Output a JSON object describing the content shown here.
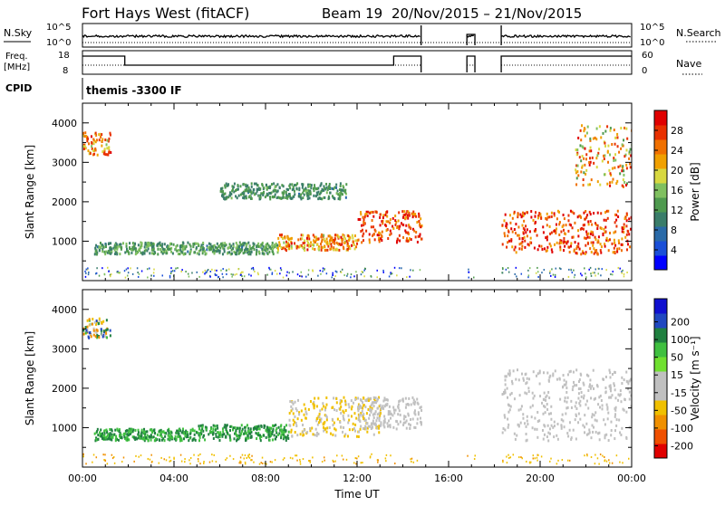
{
  "title": {
    "station": "Fort Hays West (fitACF)",
    "beam": "Beam 19",
    "dates": "20/Nov/2015 – 21/Nov/2015"
  },
  "panels": {
    "nsky": {
      "left_label": "N.Sky",
      "right_label": "N.Search",
      "left_ticks": [
        "10^5",
        "10^0"
      ],
      "right_ticks": [
        "10^5",
        "10^0"
      ]
    },
    "freq": {
      "left_label_1": "Freq.",
      "left_label_2": "[MHz]",
      "right_label": "Nave",
      "left_ticks": [
        "18",
        "8"
      ],
      "right_ticks": [
        "60",
        "0"
      ]
    },
    "cpid": {
      "label": "CPID",
      "text": "themis -3300 IF"
    }
  },
  "colors": {
    "power_scale": [
      "#0000ff",
      "#1a4fd8",
      "#2a6aa8",
      "#3a7d6a",
      "#4f9a4f",
      "#80c060",
      "#d8d840",
      "#f0a000",
      "#f07000",
      "#e83000",
      "#e00000"
    ],
    "velocity_scale": [
      "#1010d0",
      "#2048c0",
      "#208040",
      "#40c040",
      "#70e030",
      "#c0c0c0",
      "#c0c0c0",
      "#f0c000",
      "#f09000",
      "#f05000",
      "#e00000"
    ],
    "ground_scatter": "#c0c0c0"
  },
  "chart_data": [
    {
      "type": "heatmap",
      "name": "power",
      "ylabel": "Slant Range [km]",
      "ylim": [
        0,
        4500
      ],
      "yticks": [
        "1000",
        "2000",
        "3000",
        "4000"
      ],
      "xticks": [
        "00:00",
        "04:00",
        "08:00",
        "12:00",
        "16:00",
        "20:00",
        "00:00"
      ],
      "xlim_hours": [
        0,
        24
      ],
      "colorbar": {
        "label": "Power [dB]",
        "ticks": [
          "4",
          "8",
          "12",
          "16",
          "20",
          "24",
          "28"
        ],
        "range": [
          0,
          30
        ]
      },
      "data_gaps_hours": [
        [
          14.8,
          16.8
        ],
        [
          17.15,
          18.3
        ]
      ],
      "features": [
        {
          "start_hour": 0.5,
          "end_hour": 8.5,
          "range_km": [
            700,
            1000
          ],
          "power_db": [
            8,
            16
          ]
        },
        {
          "start_hour": 8.5,
          "end_hour": 12.0,
          "range_km": [
            800,
            1200
          ],
          "power_db": [
            16,
            28
          ]
        },
        {
          "start_hour": 12.0,
          "end_hour": 14.8,
          "range_km": [
            1000,
            1800
          ],
          "power_db": [
            20,
            30
          ]
        },
        {
          "start_hour": 18.3,
          "end_hour": 24.0,
          "range_km": [
            700,
            1800
          ],
          "power_db": [
            20,
            30
          ]
        },
        {
          "start_hour": 6.0,
          "end_hour": 11.5,
          "range_km": [
            2100,
            2500
          ],
          "power_db": [
            8,
            14
          ]
        },
        {
          "start_hour": 0.0,
          "end_hour": 1.2,
          "range_km": [
            3200,
            3800
          ],
          "power_db": [
            16,
            28
          ]
        },
        {
          "start_hour": 21.5,
          "end_hour": 24.0,
          "range_km": [
            2400,
            4000
          ],
          "power_db": [
            12,
            28
          ]
        }
      ]
    },
    {
      "type": "heatmap",
      "name": "velocity",
      "ylabel": "Slant Range [km]",
      "xlabel": "Time UT",
      "ylim": [
        0,
        4500
      ],
      "yticks": [
        "1000",
        "2000",
        "3000",
        "4000"
      ],
      "xticks": [
        "00:00",
        "04:00",
        "08:00",
        "12:00",
        "16:00",
        "20:00",
        "00:00"
      ],
      "xlim_hours": [
        0,
        24
      ],
      "colorbar": {
        "label": "Velocity [m s⁻¹]",
        "ticks": [
          "200",
          "100",
          "50",
          "15",
          "-15",
          "-50",
          "-100",
          "-200"
        ]
      },
      "data_gaps_hours": [
        [
          14.8,
          16.8
        ],
        [
          17.15,
          18.3
        ]
      ],
      "features": [
        {
          "start_hour": 0.5,
          "end_hour": 5.0,
          "range_km": [
            700,
            1000
          ],
          "velocity": [
            15,
            100
          ]
        },
        {
          "start_hour": 5.0,
          "end_hour": 9.0,
          "range_km": [
            700,
            1100
          ],
          "velocity": [
            15,
            100
          ]
        },
        {
          "start_hour": 9.0,
          "end_hour": 13.0,
          "range_km": [
            800,
            1800
          ],
          "velocity": [
            -100,
            -15
          ]
        },
        {
          "start_hour": 12.0,
          "end_hour": 14.8,
          "range_km": [
            1000,
            1800
          ],
          "velocity": [
            -15,
            15
          ]
        },
        {
          "start_hour": 18.3,
          "end_hour": 24.0,
          "range_km": [
            700,
            2500
          ],
          "velocity": [
            -15,
            15
          ]
        },
        {
          "start_hour": 0.0,
          "end_hour": 1.2,
          "range_km": [
            3300,
            3800
          ],
          "velocity": [
            -200,
            200
          ]
        }
      ]
    }
  ]
}
